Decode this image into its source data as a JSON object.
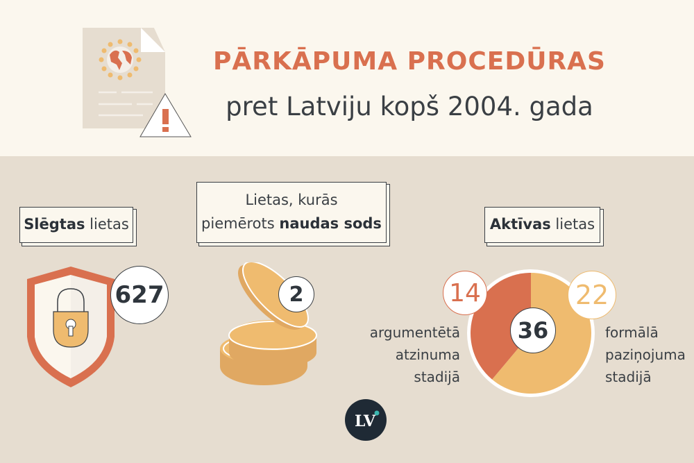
{
  "header": {
    "title": "PĀRKĀPUMA PROCEDŪRAS",
    "subtitle": "pret Latviju kopš 2004. gada"
  },
  "closed": {
    "label_bold": "Slēgtas",
    "label_rest": " lietas",
    "count": "627",
    "icon": "shield-lock-icon"
  },
  "fined": {
    "label_line1": "Lietas, kurās",
    "label_line2_rest": "piemērots ",
    "label_line2_bold": "naudas sods",
    "count": "2",
    "icon": "coins-icon"
  },
  "active": {
    "label_bold": "Aktīvas",
    "label_rest": " lietas",
    "total": "36",
    "argued": {
      "count": "14",
      "value": 14,
      "line1": "argumentētā",
      "line2": "atzinuma",
      "line3": "stadijā"
    },
    "formal": {
      "count": "22",
      "value": 22,
      "line1": "formālā",
      "line2": "paziņojuma",
      "line3": "stadijā"
    }
  },
  "colors": {
    "accent": "#d9704f",
    "gold": "#efbb6f",
    "dark": "#2f363d",
    "background": "#e6ddd0",
    "header_bg": "#fbf7ee"
  },
  "logo": {
    "text": "LV"
  }
}
